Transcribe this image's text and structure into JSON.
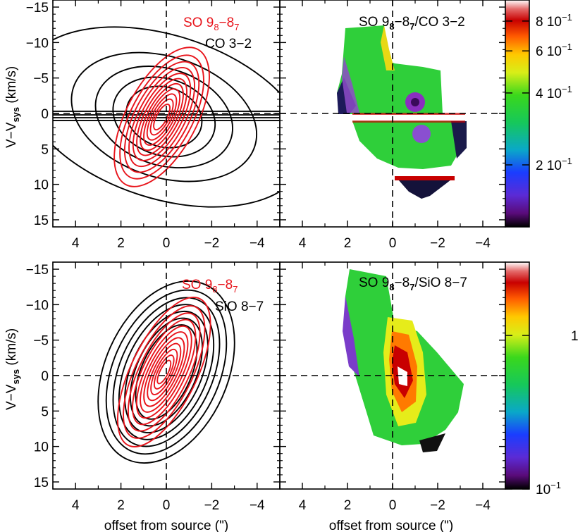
{
  "chart_data": [
    {
      "id": "top-left",
      "type": "contour",
      "xlabel": "",
      "ylabel_main": "V−V",
      "ylabel_sub": "sys",
      "ylabel_unit": " (km/s)",
      "xlim": [
        5,
        -5
      ],
      "ylim": [
        16,
        -16
      ],
      "xticks": [
        4,
        2,
        0,
        -2,
        -4
      ],
      "xtick_labels": [
        "4",
        "2",
        "0",
        "−2",
        "−4"
      ],
      "yticks": [
        -15,
        -10,
        -5,
        0,
        5,
        10,
        15
      ],
      "ytick_labels": [
        "−15",
        "−10",
        "−5",
        "0",
        "5",
        "10",
        "15"
      ],
      "legend": [
        {
          "main": "SO 9",
          "sub1": "8",
          "mid": "−8",
          "sub2": "7",
          "color": "#e8141b"
        },
        {
          "text": "CO 3−2",
          "color": "#000000"
        }
      ],
      "series": [
        {
          "color": "#e8141b",
          "center": [
            0.2,
            0.5
          ],
          "rotation_deg": 28,
          "levels": [
            {
              "rx": 1.55,
              "ry": 10.8
            },
            {
              "rx": 1.35,
              "ry": 9.6
            },
            {
              "rx": 1.18,
              "ry": 8.6
            },
            {
              "rx": 1.02,
              "ry": 7.7
            },
            {
              "rx": 0.88,
              "ry": 6.8
            },
            {
              "rx": 0.75,
              "ry": 6.0
            },
            {
              "rx": 0.63,
              "ry": 5.2
            },
            {
              "rx": 0.52,
              "ry": 4.4
            },
            {
              "rx": 0.42,
              "ry": 3.6
            },
            {
              "rx": 0.32,
              "ry": 2.8
            },
            {
              "rx": 0.23,
              "ry": 2.0
            }
          ]
        },
        {
          "color": "#000000",
          "center": [
            0.1,
            0.5
          ],
          "rotation_deg": 18,
          "levels": [
            {
              "rx": 6.5,
              "ry": 11.5
            },
            {
              "rx": 4.2,
              "ry": 8.5
            },
            {
              "rx": 3.1,
              "ry": 6.8
            },
            {
              "rx": 2.3,
              "ry": 5.4
            },
            {
              "rx": 1.7,
              "ry": 4.2
            }
          ],
          "stripes_y": [
            -0.3,
            0.2,
            0.6,
            1.0
          ]
        }
      ]
    },
    {
      "id": "top-right",
      "type": "heatmap",
      "title_main": "SO 9",
      "title_sub1": "8",
      "title_mid": "−8",
      "title_sub2": "7",
      "title_rest": "/CO 3−2",
      "xlim": [
        5,
        -5
      ],
      "ylim": [
        16,
        -16
      ],
      "xticks": [
        4,
        2,
        0,
        -2,
        -4
      ],
      "xtick_labels": [
        "4",
        "2",
        "0",
        "−2",
        "−4"
      ],
      "colorbar": {
        "scale": "log",
        "min": 0.11,
        "max": 0.98,
        "ticks": [
          {
            "value": 0.8,
            "mant": "8",
            "exp": "−1"
          },
          {
            "value": 0.6,
            "mant": "6",
            "exp": "−1"
          },
          {
            "value": 0.4,
            "mant": "4",
            "exp": "−1"
          },
          {
            "value": 0.2,
            "mant": "2",
            "exp": "−1"
          }
        ]
      }
    },
    {
      "id": "bottom-left",
      "type": "contour",
      "xlabel": "offset from source (\")",
      "ylabel_main": "V−V",
      "ylabel_sub": "sys",
      "ylabel_unit": " (km/s)",
      "xlim": [
        5,
        -5
      ],
      "ylim": [
        16,
        -16
      ],
      "xticks": [
        4,
        2,
        0,
        -2,
        -4
      ],
      "xtick_labels": [
        "4",
        "2",
        "0",
        "−2",
        "−4"
      ],
      "yticks": [
        -15,
        -10,
        -5,
        0,
        5,
        10,
        15
      ],
      "ytick_labels": [
        "−15",
        "−10",
        "−5",
        "0",
        "5",
        "10",
        "15"
      ],
      "legend": [
        {
          "main": "SO 9",
          "sub1": "8",
          "mid": "−8",
          "sub2": "7",
          "color": "#e8141b"
        },
        {
          "text": "SiO 8−7",
          "color": "#000000"
        }
      ],
      "series": [
        {
          "color": "#e8141b",
          "center": [
            0.1,
            -0.5
          ],
          "rotation_deg": 26,
          "levels": [
            {
              "rx": 1.45,
              "ry": 11.5
            },
            {
              "rx": 1.25,
              "ry": 10.2
            },
            {
              "rx": 1.08,
              "ry": 9.1
            },
            {
              "rx": 0.93,
              "ry": 8.1
            },
            {
              "rx": 0.8,
              "ry": 7.1
            },
            {
              "rx": 0.68,
              "ry": 6.2
            },
            {
              "rx": 0.57,
              "ry": 5.3
            },
            {
              "rx": 0.46,
              "ry": 4.4
            },
            {
              "rx": 0.36,
              "ry": 3.5
            },
            {
              "rx": 0.27,
              "ry": 2.6
            },
            {
              "rx": 0.18,
              "ry": 1.8
            }
          ]
        },
        {
          "color": "#000000",
          "center": [
            0.0,
            -0.5
          ],
          "rotation_deg": 24,
          "levels": [
            {
              "rx": 2.7,
              "ry": 13.5
            },
            {
              "rx": 2.35,
              "ry": 12.2
            },
            {
              "rx": 2.05,
              "ry": 11.1
            },
            {
              "rx": 1.8,
              "ry": 10.1
            },
            {
              "rx": 1.55,
              "ry": 9.1
            },
            {
              "rx": 1.32,
              "ry": 8.1
            },
            {
              "rx": 1.1,
              "ry": 7.1
            }
          ]
        }
      ]
    },
    {
      "id": "bottom-right",
      "type": "heatmap",
      "title_main": "SO 9",
      "title_sub1": "8",
      "title_mid": "−8",
      "title_sub2": "7",
      "title_rest": "/SiO 8−7",
      "xlabel": "offset from source (\")",
      "xlim": [
        5,
        -5
      ],
      "ylim": [
        16,
        -16
      ],
      "xticks": [
        4,
        2,
        0,
        -2,
        -4
      ],
      "xtick_labels": [
        "4",
        "2",
        "0",
        "−2",
        "−4"
      ],
      "colorbar": {
        "scale": "log",
        "min": 0.1,
        "max": 3.0,
        "ticks": [
          {
            "value": 1,
            "mant": "1",
            "exp": ""
          },
          {
            "value": 0.1,
            "mant": "10",
            "exp": "−1"
          }
        ]
      }
    }
  ]
}
